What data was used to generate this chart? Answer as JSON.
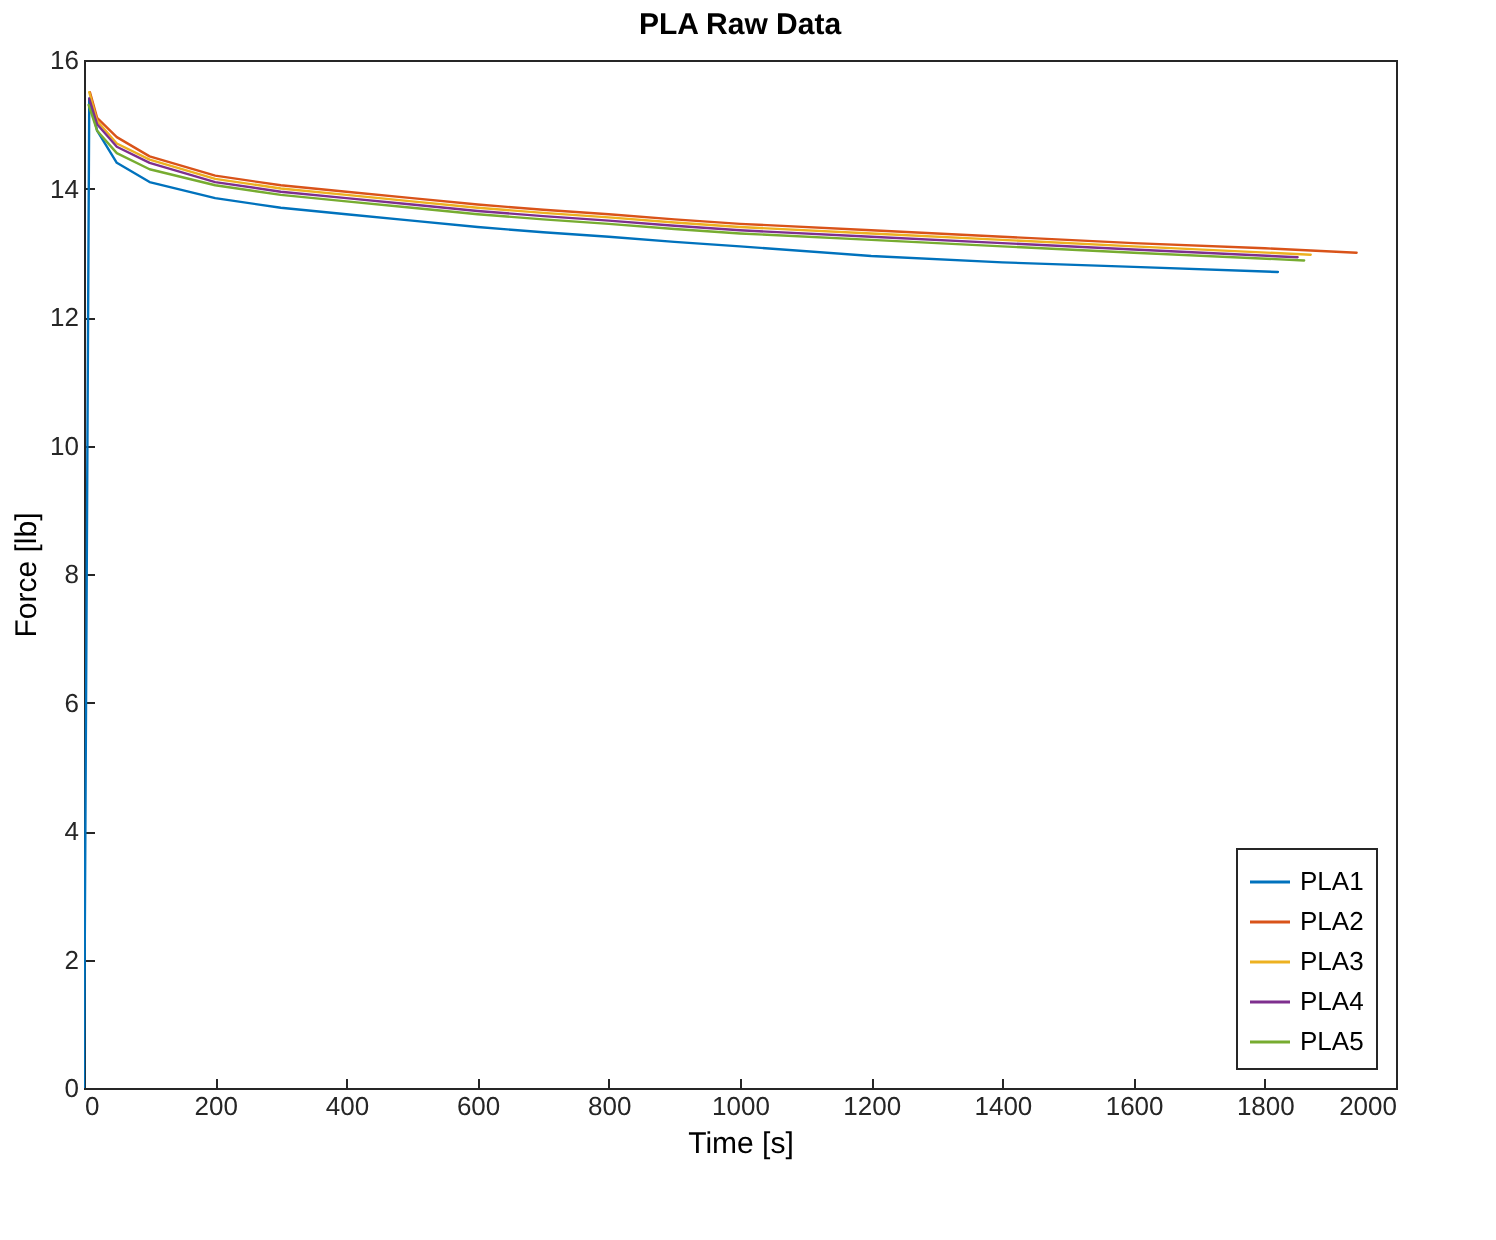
{
  "chart_data": {
    "type": "line",
    "title": "PLA Raw Data",
    "xlabel": "Time [s]",
    "ylabel": "Force [lb]",
    "xlim": [
      0,
      2000
    ],
    "xticks": [
      0,
      200,
      400,
      600,
      800,
      1000,
      1200,
      1400,
      1600,
      1800,
      2000
    ],
    "ylim": [
      0,
      16
    ],
    "yticks": [
      0,
      2,
      4,
      6,
      8,
      10,
      12,
      14,
      16
    ],
    "grid": false,
    "legend": "bottom right",
    "marker": "none",
    "line_style": "solid",
    "series": [
      {
        "name": "PLA1",
        "color": "#0072bd",
        "x": [
          0,
          8,
          20,
          50,
          100,
          200,
          300,
          400,
          500,
          600,
          700,
          800,
          900,
          1000,
          1200,
          1400,
          1600,
          1820
        ],
        "values": [
          0,
          15.4,
          14.9,
          14.4,
          14.1,
          13.85,
          13.7,
          13.6,
          13.5,
          13.4,
          13.32,
          13.25,
          13.17,
          13.1,
          12.95,
          12.85,
          12.78,
          12.7
        ]
      },
      {
        "name": "PLA2",
        "color": "#d95319",
        "x": [
          9,
          20,
          50,
          100,
          200,
          300,
          400,
          500,
          600,
          700,
          800,
          900,
          1000,
          1200,
          1400,
          1600,
          1800,
          1940
        ],
        "values": [
          15.5,
          15.1,
          14.8,
          14.5,
          14.2,
          14.05,
          13.95,
          13.85,
          13.75,
          13.67,
          13.6,
          13.52,
          13.45,
          13.35,
          13.25,
          13.15,
          13.07,
          13.0
        ]
      },
      {
        "name": "PLA3",
        "color": "#edb120",
        "x": [
          8,
          20,
          50,
          100,
          200,
          300,
          400,
          500,
          600,
          700,
          800,
          900,
          1000,
          1200,
          1400,
          1600,
          1870
        ],
        "values": [
          15.5,
          15.05,
          14.7,
          14.45,
          14.15,
          14.0,
          13.9,
          13.8,
          13.7,
          13.62,
          13.55,
          13.47,
          13.4,
          13.3,
          13.2,
          13.1,
          12.97
        ]
      },
      {
        "name": "PLA4",
        "color": "#7e2f8e",
        "x": [
          8,
          20,
          50,
          100,
          200,
          300,
          400,
          500,
          600,
          700,
          800,
          900,
          1000,
          1200,
          1400,
          1600,
          1850
        ],
        "values": [
          15.4,
          15.0,
          14.65,
          14.4,
          14.1,
          13.95,
          13.85,
          13.75,
          13.65,
          13.57,
          13.5,
          13.42,
          13.35,
          13.25,
          13.15,
          13.05,
          12.93
        ]
      },
      {
        "name": "PLA5",
        "color": "#77ac30",
        "x": [
          7,
          20,
          50,
          100,
          200,
          300,
          400,
          500,
          600,
          700,
          800,
          900,
          1000,
          1200,
          1400,
          1600,
          1860
        ],
        "values": [
          15.3,
          14.9,
          14.55,
          14.3,
          14.05,
          13.9,
          13.8,
          13.7,
          13.6,
          13.52,
          13.45,
          13.37,
          13.3,
          13.2,
          13.1,
          13.0,
          12.88
        ]
      }
    ]
  }
}
